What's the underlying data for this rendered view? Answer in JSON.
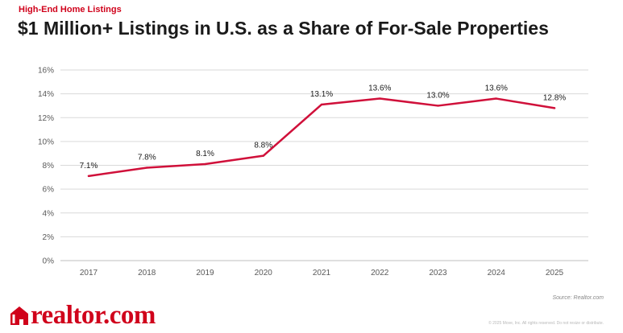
{
  "header": {
    "kicker": "High-End Home Listings",
    "title": "$1 Million+ Listings in U.S. as a Share of For-Sale Properties"
  },
  "footer": {
    "logo_text": "realtor.com",
    "source": "Source: Realtor.com",
    "copyright": "© 2025 Move, Inc. All rights reserved. Do not resize or distribute."
  },
  "colors": {
    "accent": "#d0021b",
    "line": "#d0103a",
    "grid": "#d9d9d9",
    "text": "#1a1a1a"
  },
  "chart_data": {
    "type": "line",
    "categories": [
      "2017",
      "2018",
      "2019",
      "2020",
      "2021",
      "2022",
      "2023",
      "2024",
      "2025"
    ],
    "series": [
      {
        "values": [
          7.1,
          7.8,
          8.1,
          8.8,
          13.1,
          13.6,
          13.0,
          13.6,
          12.8
        ],
        "labels": [
          "7.1%",
          "7.8%",
          "8.1%",
          "8.8%",
          "13.1%",
          "13.6%",
          "13.0%",
          "13.6%",
          "12.8%"
        ]
      }
    ],
    "yticks": [
      "0%",
      "2%",
      "4%",
      "6%",
      "8%",
      "10%",
      "12%",
      "14%",
      "16%"
    ],
    "ylim": [
      0,
      16
    ],
    "grid": true,
    "legend": "none"
  }
}
